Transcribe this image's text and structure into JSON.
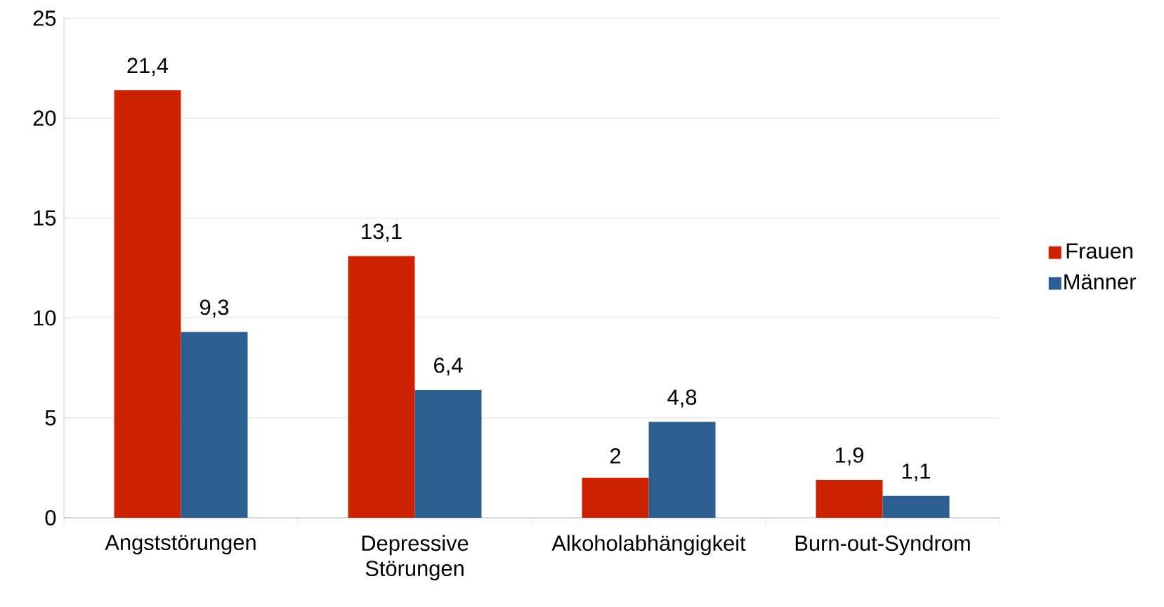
{
  "chart_data": {
    "type": "bar",
    "categories": [
      "Angststörungen",
      "Depressive Störungen",
      "Alkoholabhängigkeit",
      "Burn-out-Syndrom"
    ],
    "series": [
      {
        "name": "Frauen",
        "color": "#cc2200",
        "values": [
          21.4,
          13.1,
          2,
          1.9
        ],
        "value_labels": [
          "21,4",
          "13,1",
          "2",
          "1,9"
        ]
      },
      {
        "name": "Männer",
        "color": "#2c5f91",
        "values": [
          9.3,
          6.4,
          4.8,
          1.1
        ],
        "value_labels": [
          "9,3",
          "6,4",
          "4,8",
          "1,1"
        ]
      }
    ],
    "ylim": [
      0,
      25
    ],
    "yticks": [
      0,
      5,
      10,
      15,
      20,
      25
    ],
    "grid": "y",
    "legend": "right"
  }
}
